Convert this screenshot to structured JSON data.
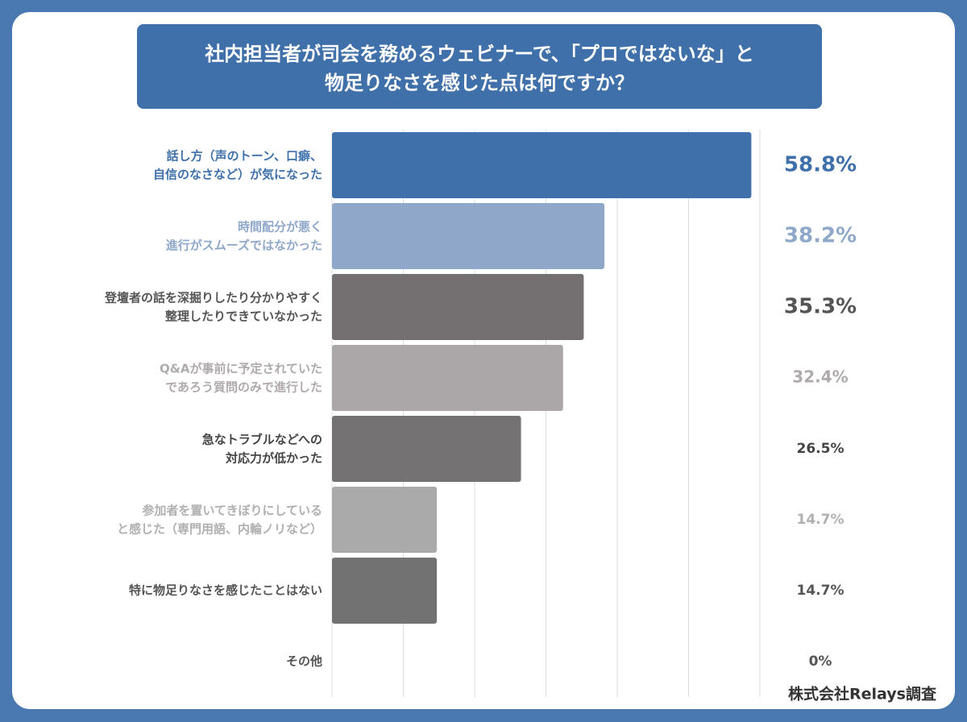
{
  "chart_data": {
    "type": "hbar",
    "title": [
      "社内担当者が司会を務めるウェビナーで、「プロではないな」と",
      "物足りなさを感じた点は何ですか？"
    ],
    "categories": [
      "話し方（声のトーン、口癖、\n自信のなさなど）が気になった",
      "時間配分が悪く\n進行がスムーズではなかった",
      "登壇者の話を深掘りしたり分かりやすく\n整理したりできていなかった",
      "Q&Aが事前に予定されていた\nであろう質問のみで進行した",
      "急なトラブルなどへの\n対応力が低かった",
      "参加者を置いてきぼりにしている\nと感じた（専門用語、内輪ノリなど）",
      "特に物足りなさを感じたことはない",
      "その他"
    ],
    "values": [
      58.8,
      38.2,
      35.3,
      32.4,
      26.5,
      14.7,
      14.7,
      0
    ],
    "value_labels": [
      "58.8%",
      "38.2%",
      "35.3%",
      "32.4%",
      "26.5%",
      "14.7%",
      "14.7%",
      "0%"
    ],
    "colors": [
      "#3f70aa",
      "#8fa8ca",
      "#747072",
      "#aba6a8",
      "#747273",
      "#aaaaaa",
      "#727272",
      "#aaaaaa"
    ],
    "label_colors": [
      "#3f70aa",
      "#8fa8ca",
      "#555555",
      "#b0aaac",
      "#444444",
      "#b0b0b0",
      "#555555",
      "#555555"
    ],
    "xlim": [
      0,
      60
    ],
    "xticks": [
      0,
      10,
      20,
      30,
      40,
      50,
      60
    ],
    "grid": true,
    "source": "株式会社Relays調査"
  }
}
